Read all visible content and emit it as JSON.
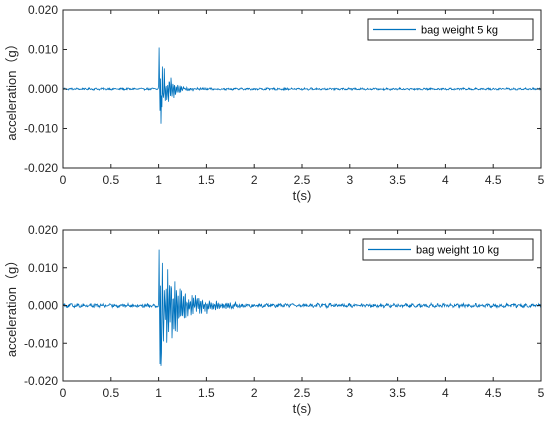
{
  "chart_data": [
    {
      "type": "line",
      "xlabel": "t(s)",
      "ylabel": "acceleration（g）",
      "xlim": [
        0,
        5
      ],
      "ylim": [
        -0.02,
        0.02
      ],
      "x_ticks": [
        "0",
        "0.5",
        "1",
        "1.5",
        "2",
        "2.5",
        "3",
        "3.5",
        "4",
        "4.5",
        "5"
      ],
      "y_ticks": [
        "0.020",
        "0.010",
        "0.000",
        "-0.010",
        "-0.020"
      ],
      "grid": false,
      "legend_position": "top-right",
      "series": [
        {
          "name": "bag weight 5 kg",
          "color": "#0072BD",
          "sample_rate_s": 0.005,
          "baseline_noise": 0.0002,
          "impact_time": 1.0,
          "peak_positive": 0.0105,
          "peak_negative": -0.0088,
          "decay_end_time": 1.6
        }
      ]
    },
    {
      "type": "line",
      "xlabel": "t(s)",
      "ylabel": "acceleration（g）",
      "xlim": [
        0,
        5
      ],
      "ylim": [
        -0.02,
        0.02
      ],
      "x_ticks": [
        "0",
        "0.5",
        "1",
        "1.5",
        "2",
        "2.5",
        "3",
        "3.5",
        "4",
        "4.5",
        "5"
      ],
      "y_ticks": [
        "0.020",
        "0.010",
        "0.000",
        "-0.010",
        "-0.020"
      ],
      "grid": false,
      "legend_position": "top-right",
      "series": [
        {
          "name": "bag weight 10 kg",
          "color": "#0072BD",
          "sample_rate_s": 0.005,
          "baseline_noise": 0.0004,
          "impact_time": 1.0,
          "peak_positive": 0.0148,
          "peak_negative": -0.016,
          "decay_end_time": 2.3
        }
      ]
    }
  ]
}
